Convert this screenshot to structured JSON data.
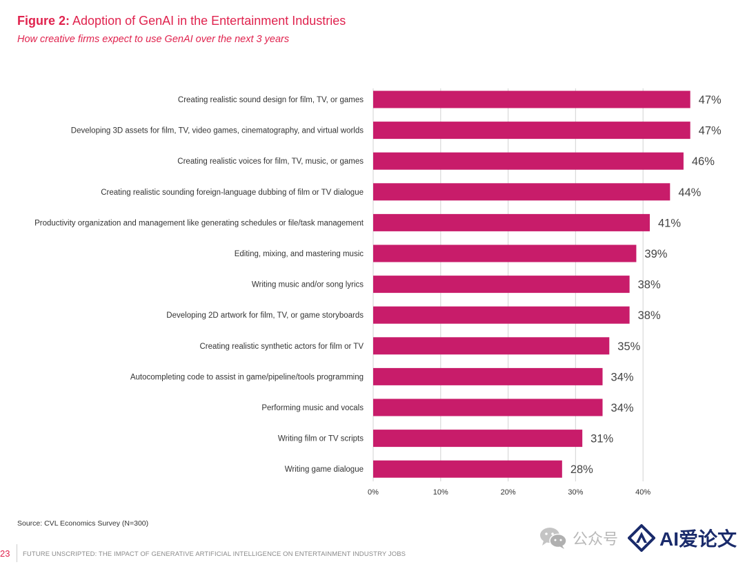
{
  "header": {
    "figure_label": "Figure 2:",
    "title": "Adoption of GenAI in the Entertainment Industries",
    "subtitle": "How creative firms expect to use GenAI over the next 3 years"
  },
  "colors": {
    "accent": "#e0234e",
    "bar": "#c81c6a",
    "grid": "#d9d9d9",
    "text": "#333333"
  },
  "chart_data": {
    "type": "bar",
    "orientation": "horizontal",
    "categories": [
      "Creating realistic sound design for film, TV, or games",
      "Developing 3D assets for film, TV, video games, cinematography, and virtual worlds",
      "Creating realistic voices for film, TV, music, or games",
      "Creating realistic sounding foreign-language dubbing of film or TV dialogue",
      "Productivity organization and management like generating schedules or file/task management",
      "Editing, mixing, and mastering music",
      "Writing music and/or song lyrics",
      "Developing 2D artwork for film, TV, or game storyboards",
      "Creating realistic synthetic actors for film or TV",
      "Autocompleting code to assist in game/pipeline/tools programming",
      "Performing music and vocals",
      "Writing film or TV scripts",
      "Writing game dialogue"
    ],
    "values": [
      47,
      47,
      46,
      44,
      41,
      39,
      38,
      38,
      35,
      34,
      34,
      31,
      28
    ],
    "value_labels": [
      "47%",
      "47%",
      "46%",
      "44%",
      "41%",
      "39%",
      "38%",
      "38%",
      "35%",
      "34%",
      "34%",
      "31%",
      "28%"
    ],
    "xlim": [
      0,
      40
    ],
    "xticks": [
      0,
      10,
      20,
      30,
      40
    ],
    "xtick_labels": [
      "0%",
      "10%",
      "20%",
      "30%",
      "40%"
    ],
    "grid": "vertical",
    "legend": "none"
  },
  "source": "Source: CVL Economics Survey (N=300)",
  "footer": {
    "page_number": "23",
    "text": "FUTURE UNSCRIPTED: THE IMPACT OF GENERATIVE ARTIFICIAL INTELLIGENCE ON ENTERTAINMENT INDUSTRY JOBS"
  },
  "watermark": {
    "name": "公众号",
    "brand": "AI爱论文",
    "icons": [
      "wechat-icon",
      "ai-logo-icon"
    ]
  }
}
